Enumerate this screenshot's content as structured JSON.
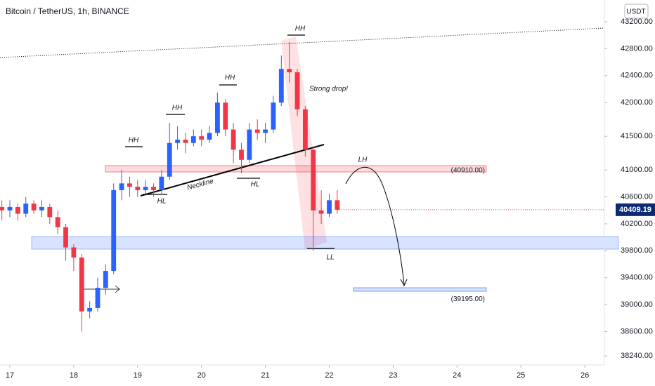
{
  "chart_data": {
    "type": "candlestick",
    "title": "Bitcoin / TetherUS, 1h, BINANCE",
    "currency": "USDT",
    "up_color": "#2962ff",
    "down_color": "#f23645",
    "x": [
      16.875,
      17,
      17.125,
      17.25,
      17.375,
      17.5,
      17.625,
      17.75,
      17.875,
      18,
      18.125,
      18.25,
      18.375,
      18.5,
      18.625,
      18.75,
      18.875,
      19,
      19.125,
      19.25,
      19.375,
      19.5,
      19.625,
      19.75,
      19.875,
      20,
      20.125,
      20.25,
      20.375,
      20.5,
      20.625,
      20.75,
      20.875,
      21,
      21.125,
      21.25,
      21.375,
      21.5,
      21.625,
      21.75,
      21.875,
      22,
      22.125
    ],
    "open": [
      40450,
      40400,
      40450,
      40350,
      40500,
      40400,
      40450,
      40300,
      40150,
      39850,
      39700,
      38900,
      38950,
      39250,
      39500,
      40700,
      40800,
      40750,
      40700,
      40750,
      40700,
      40900,
      41400,
      41450,
      41400,
      41500,
      41450,
      41550,
      42000,
      41600,
      41300,
      41150,
      41600,
      41550,
      41600,
      42000,
      42500,
      42450,
      41900,
      41300,
      40400,
      40350,
      40550
    ],
    "high": [
      40550,
      40550,
      40500,
      40600,
      40550,
      40550,
      40500,
      40400,
      40200,
      39900,
      39750,
      39050,
      39400,
      39600,
      40800,
      41000,
      40900,
      40850,
      40850,
      40800,
      41000,
      41700,
      41650,
      41550,
      41600,
      41600,
      41650,
      42150,
      42050,
      41700,
      41400,
      41700,
      41750,
      41700,
      42100,
      42700,
      42900,
      42500,
      41950,
      41350,
      40700,
      40650,
      40700
    ],
    "low": [
      40250,
      40300,
      40250,
      40300,
      40350,
      40300,
      40200,
      40050,
      39650,
      39500,
      38600,
      38800,
      38900,
      39150,
      39450,
      40550,
      40600,
      40600,
      40650,
      40600,
      40650,
      40850,
      41300,
      41250,
      41350,
      41350,
      41400,
      41500,
      41500,
      41100,
      40950,
      41100,
      41450,
      41400,
      41550,
      41950,
      42300,
      41800,
      41200,
      39800,
      40200,
      40300,
      40350
    ],
    "close": [
      40400,
      40450,
      40350,
      40500,
      40400,
      40450,
      40300,
      40150,
      39850,
      39700,
      38900,
      38950,
      39250,
      39500,
      40700,
      40800,
      40750,
      40700,
      40750,
      40700,
      40900,
      41400,
      41450,
      41400,
      41500,
      41450,
      41550,
      42000,
      41600,
      41300,
      41150,
      41600,
      41550,
      41600,
      42000,
      42500,
      42450,
      41900,
      41300,
      40400,
      40350,
      40550,
      40409.19
    ],
    "xlim": [
      16.846,
      26.307
    ],
    "xticks": [
      17,
      18,
      19,
      20,
      21,
      22,
      23,
      24,
      25,
      26
    ],
    "ylim": [
      38105,
      43523
    ],
    "yticks": [
      {
        "value": 43200,
        "label": "43200.00"
      },
      {
        "value": 42800,
        "label": "42800.00"
      },
      {
        "value": 42400,
        "label": "42400.00"
      },
      {
        "value": 42000,
        "label": "42000.00"
      },
      {
        "value": 41500,
        "label": "41500.00"
      },
      {
        "value": 41000,
        "label": "41000.00"
      },
      {
        "value": 40600,
        "label": "40600.00"
      },
      {
        "value": 40200,
        "label": "40200.00"
      },
      {
        "value": 39800,
        "label": "39800.00"
      },
      {
        "value": 39400,
        "label": "39400.00"
      },
      {
        "value": 39000,
        "label": "39000.00"
      },
      {
        "value": 38600,
        "label": "38600.00"
      },
      {
        "value": 38240,
        "label": "38240.00"
      }
    ],
    "levels": [
      {
        "value": 40910,
        "label": "(40910.00)"
      },
      {
        "value": 39195,
        "label": "(39195.00)"
      }
    ],
    "annotations": [
      "HH",
      "HH",
      "HH",
      "HH",
      "HL",
      "HL",
      "LH",
      "LL",
      "Neckline",
      "Strong drop!"
    ]
  }
}
